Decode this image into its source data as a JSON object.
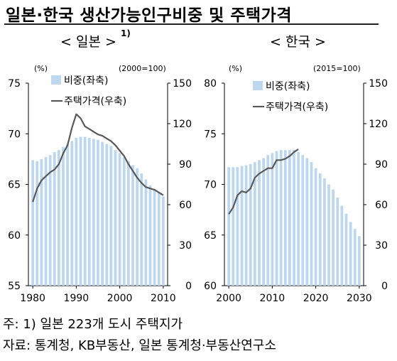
{
  "title": "일본·한국 생산가능인구비중 및 주택가격",
  "note1": "주: 1) 일본 223개 도시 주택지가",
  "note2": "자료: 통계청, KB부동산, 일본 통계청·부동산연구소",
  "chart_data": [
    {
      "type": "bar+line",
      "subtitle": "< 일본 >",
      "superscript": "1)",
      "left_unit": "(%)",
      "right_unit": "(2000=100)",
      "left_ylim": [
        55,
        75
      ],
      "left_ticks": [
        "75",
        "70",
        "65",
        "60",
        "55"
      ],
      "right_ylim": [
        0,
        150
      ],
      "right_ticks": [
        "150",
        "120",
        "90",
        "60",
        "30",
        "0"
      ],
      "xlim": [
        1979,
        2011
      ],
      "x_ticks": [
        "1980",
        "1990",
        "2000",
        "2010"
      ],
      "bar_color": "#bdd7ee",
      "line_color": "#595959",
      "series": [
        {
          "name": "비중(좌축)",
          "axis": "left",
          "type": "bar",
          "x": [
            1980,
            1981,
            1982,
            1983,
            1984,
            1985,
            1986,
            1987,
            1988,
            1989,
            1990,
            1991,
            1992,
            1993,
            1994,
            1995,
            1996,
            1997,
            1998,
            1999,
            2000,
            2001,
            2002,
            2003,
            2004,
            2005,
            2006,
            2007,
            2008,
            2009,
            2010
          ],
          "values": [
            67.4,
            67.3,
            67.5,
            67.7,
            67.9,
            68.2,
            68.4,
            68.7,
            69.0,
            69.3,
            69.6,
            69.7,
            69.7,
            69.6,
            69.5,
            69.4,
            69.2,
            69.0,
            68.8,
            68.4,
            68.1,
            67.7,
            67.3,
            66.9,
            66.6,
            66.1,
            65.5,
            64.9,
            64.5,
            64.2,
            63.8
          ]
        },
        {
          "name": "주택가격(우축)",
          "axis": "right",
          "type": "line",
          "x": [
            1980,
            1981,
            1982,
            1983,
            1984,
            1985,
            1986,
            1987,
            1988,
            1989,
            1990,
            1991,
            1992,
            1993,
            1994,
            1995,
            1996,
            1997,
            1998,
            1999,
            2000,
            2001,
            2002,
            2003,
            2004,
            2005,
            2006,
            2007,
            2008,
            2009,
            2010
          ],
          "values": [
            62,
            72,
            78,
            81,
            84,
            86,
            90,
            98,
            104,
            117,
            127,
            124,
            118,
            116,
            114,
            112,
            111,
            109,
            107,
            104,
            100,
            96,
            90,
            85,
            80,
            76,
            73,
            72,
            71,
            69,
            67
          ]
        }
      ]
    },
    {
      "type": "bar+line",
      "subtitle": "< 한국 >",
      "left_unit": "(%)",
      "right_unit": "(2015=100)",
      "left_ylim": [
        60,
        80
      ],
      "left_ticks": [
        "80",
        "75",
        "70",
        "65",
        "60"
      ],
      "right_ylim": [
        0,
        150
      ],
      "right_ticks": [
        "150",
        "120",
        "90",
        "60",
        "30",
        "0"
      ],
      "xlim": [
        1999,
        2031
      ],
      "x_ticks": [
        "2000",
        "2010",
        "2020",
        "2030"
      ],
      "bar_color": "#bdd7ee",
      "line_color": "#595959",
      "series": [
        {
          "name": "비중(좌축)",
          "axis": "left",
          "type": "bar",
          "x": [
            2000,
            2001,
            2002,
            2003,
            2004,
            2005,
            2006,
            2007,
            2008,
            2009,
            2010,
            2011,
            2012,
            2013,
            2014,
            2015,
            2016,
            2017,
            2018,
            2019,
            2020,
            2021,
            2022,
            2023,
            2024,
            2025,
            2026,
            2027,
            2028,
            2029,
            2030
          ],
          "values": [
            71.7,
            71.7,
            71.7,
            71.8,
            71.9,
            72.0,
            72.2,
            72.4,
            72.6,
            72.9,
            73.1,
            73.3,
            73.4,
            73.4,
            73.4,
            73.4,
            73.2,
            72.9,
            72.6,
            72.2,
            71.6,
            71.1,
            70.6,
            70.0,
            69.5,
            68.7,
            67.9,
            67.1,
            66.3,
            65.6,
            64.9
          ]
        },
        {
          "name": "주택가격(우축)",
          "axis": "right",
          "type": "line",
          "x": [
            2000,
            2001,
            2002,
            2003,
            2004,
            2005,
            2006,
            2007,
            2008,
            2009,
            2010,
            2011,
            2012,
            2013,
            2014,
            2015,
            2016
          ],
          "values": [
            53,
            58,
            67,
            70,
            69,
            72,
            80,
            83,
            85,
            87,
            87,
            93,
            93,
            94,
            96,
            99,
            101
          ]
        }
      ]
    }
  ]
}
